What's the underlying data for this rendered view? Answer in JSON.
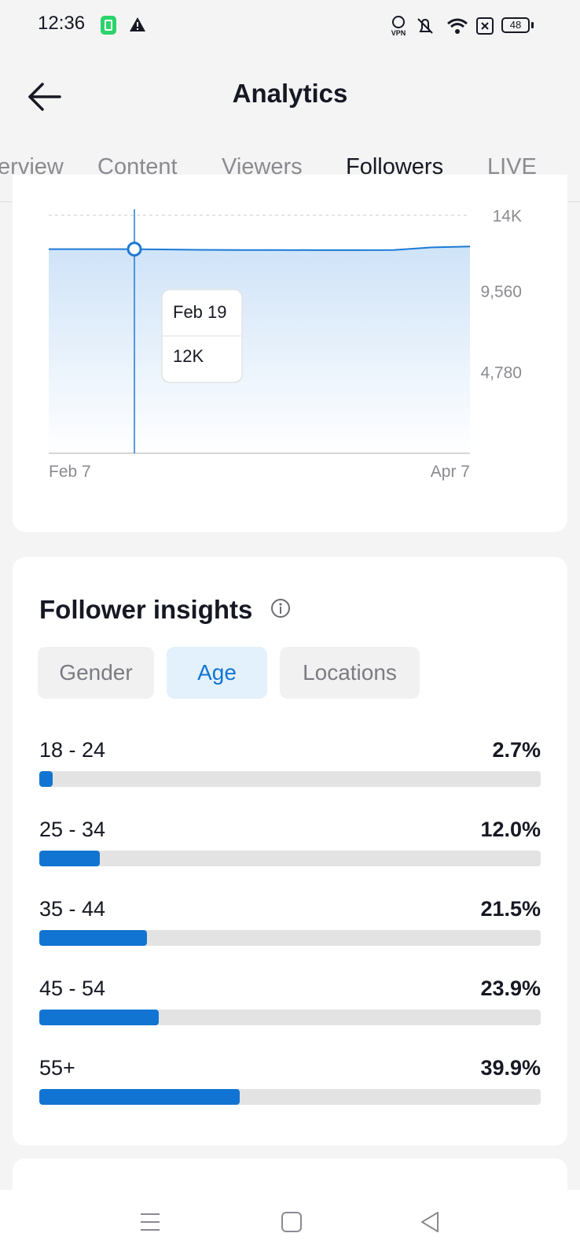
{
  "status_bar": {
    "time": "12:36",
    "battery": "48",
    "icons": [
      "battery-saver-icon",
      "warning-icon",
      "vpn-icon",
      "mute-icon",
      "wifi-icon",
      "sim-off-icon",
      "battery-icon"
    ],
    "vpn_label": "VPN"
  },
  "header": {
    "back_icon": "back-arrow-icon",
    "title": "Analytics"
  },
  "tabs": [
    {
      "label": "Overview",
      "active": false
    },
    {
      "label": "Content",
      "active": false
    },
    {
      "label": "Viewers",
      "active": false
    },
    {
      "label": "Followers",
      "active": true
    },
    {
      "label": "LIVE",
      "active": false
    }
  ],
  "chart_data": {
    "type": "area",
    "x_start": "Feb 7",
    "x_end": "Apr 7",
    "x_tick_labels": [
      "Feb 7",
      "Apr 7"
    ],
    "y_tick_labels": [
      "14K",
      "9,560",
      "4,780"
    ],
    "ylim": [
      0,
      14340
    ],
    "grid": true,
    "series": [
      {
        "values": [
          12000,
          12000,
          12000,
          11980,
          11960,
          11950,
          11950,
          11940,
          11940,
          11950,
          12100,
          12150
        ]
      }
    ],
    "tooltip": {
      "date": "Feb 19",
      "value": "12K"
    },
    "colors": {
      "line": "#1c7ad6",
      "fill_top": "#cfe3f8",
      "fill_bottom": "#ffffff"
    }
  },
  "insights": {
    "title": "Follower insights",
    "info_icon": "info-icon",
    "segments": [
      {
        "label": "Gender",
        "active": false
      },
      {
        "label": "Age",
        "active": true
      },
      {
        "label": "Locations",
        "active": false
      }
    ],
    "age_groups": [
      {
        "label": "18 - 24",
        "percent": "2.7%",
        "value": 2.7
      },
      {
        "label": "25 - 34",
        "percent": "12.0%",
        "value": 12.0
      },
      {
        "label": "35 - 44",
        "percent": "21.5%",
        "value": 21.5
      },
      {
        "label": "45 - 54",
        "percent": "23.9%",
        "value": 23.9
      },
      {
        "label": "55+",
        "percent": "39.9%",
        "value": 39.9
      }
    ],
    "accent_color": "#1274d2"
  },
  "nav_bar": {
    "icons": [
      "menu-icon",
      "home-icon",
      "back-icon"
    ]
  }
}
